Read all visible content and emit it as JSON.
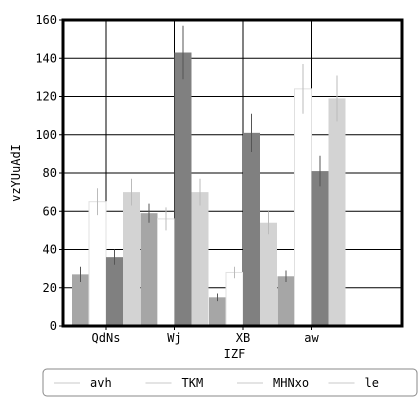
{
  "chart_data": {
    "type": "bar",
    "title": "",
    "xlabel": "IZF",
    "ylabel": "vzYUuAdI",
    "categories": [
      "QdNs",
      "Wj",
      "XB",
      "aw"
    ],
    "ylim": [
      0,
      160
    ],
    "yticks": [
      0,
      20,
      40,
      60,
      80,
      100,
      120,
      140,
      160
    ],
    "grid": true,
    "legend_position": "bottom",
    "series": [
      {
        "name": "avh",
        "color": "#a6a6a6",
        "values": [
          27,
          59,
          15,
          26
        ],
        "errors": [
          4,
          5,
          2,
          3
        ]
      },
      {
        "name": "TKM",
        "color": "#ffffff",
        "values": [
          65,
          56,
          28,
          124
        ],
        "errors": [
          7,
          6,
          3,
          13
        ]
      },
      {
        "name": "MHNxo",
        "color": "#808080",
        "values": [
          36,
          143,
          101,
          81
        ],
        "errors": [
          4,
          14,
          10,
          8
        ]
      },
      {
        "name": "le",
        "color": "#d3d3d3",
        "values": [
          70,
          70,
          54,
          119
        ],
        "errors": [
          7,
          7,
          6,
          12
        ]
      }
    ]
  }
}
